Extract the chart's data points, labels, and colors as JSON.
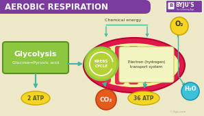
{
  "title": "AEROBIC RESPIRATION",
  "title_bg": "#7B3C9E",
  "title_color": "#FFFFFF",
  "bg_color": "#EDE8C8",
  "byju_box_color": "#7B3C9E",
  "byju_text": "BYJU'S",
  "byju_sub": "The Learning App",
  "chemical_energy_text": "Chemical energy",
  "glycolysis_label": "Glycolysis",
  "glycolysis_sub": "Glucose→Pyruvic acid",
  "glycolysis_bg": "#8DC63F",
  "glycolysis_border": "#5A9020",
  "krebs_label": "KREBS\nCYCLE",
  "krebs_bg": "#B2D235",
  "krebs_border": "#8DC63F",
  "electron_label": "Electron (hydrogen)\ntransport system",
  "electron_bg": "#F2F5C0",
  "electron_border": "#C8C870",
  "mito_outer_color": "#E0184A",
  "mito_fill": "#F0F5A0",
  "cristae_color": "#E0184A",
  "atp2_text": "2 ATP",
  "atp36_text": "36 ATP",
  "co2_text": "CO₂",
  "o2_text": "O₂",
  "h2o_text": "H₂O",
  "atp_color": "#F5D422",
  "atp_border": "#C8A800",
  "co2_color": "#E85A1A",
  "co2_border": "#B84010",
  "o2_color": "#F5D422",
  "o2_border": "#C8A800",
  "h2o_color": "#3DC0D8",
  "h2o_border": "#1898B4",
  "arrow_color": "#3DB8A0",
  "watermark": "© Byju.com",
  "text_dark": "#555533",
  "text_gray": "#666644"
}
